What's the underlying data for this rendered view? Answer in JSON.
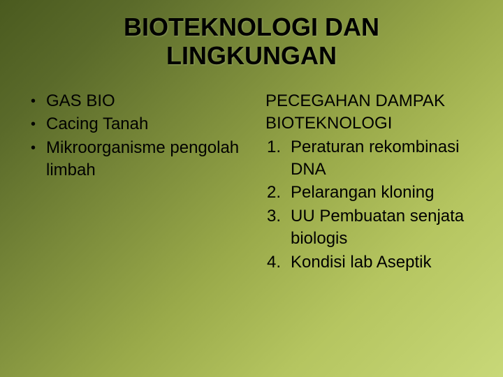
{
  "title": {
    "line1": "BIOTEKNOLOGI DAN",
    "line2": "LINGKUNGAN"
  },
  "left": {
    "bullets": [
      "GAS BIO",
      "Cacing Tanah",
      "Mikroorganisme pengolah limbah"
    ]
  },
  "right": {
    "heading_line1": "PECEGAHAN DAMPAK",
    "heading_line2": "BIOTEKNOLOGI",
    "items": [
      {
        "num": "1.",
        "text": "Peraturan rekombinasi DNA"
      },
      {
        "num": "2.",
        "text": "Pelarangan kloning"
      },
      {
        "num": "3.",
        "text": "UU Pembuatan senjata biologis"
      },
      {
        "num": "4.",
        "text": "Kondisi lab Aseptik"
      }
    ]
  },
  "colors": {
    "text": "#000000"
  }
}
